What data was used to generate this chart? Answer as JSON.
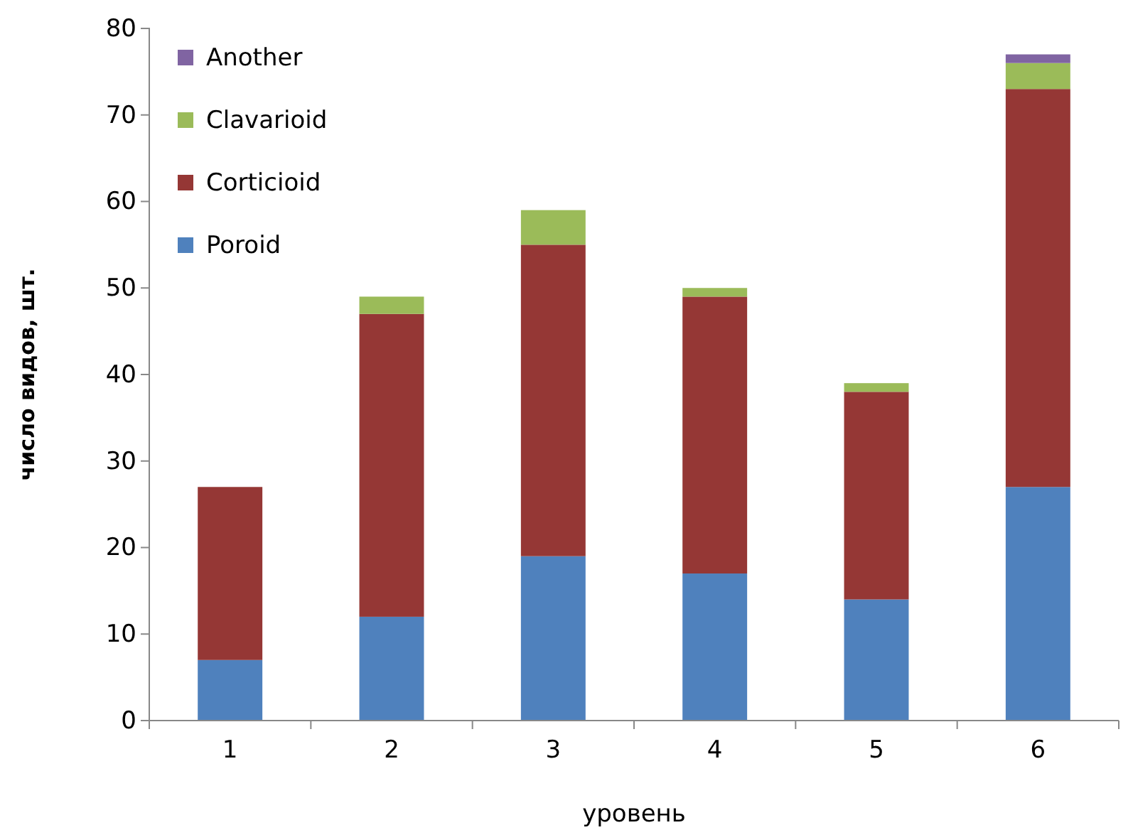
{
  "chart_data": {
    "type": "bar",
    "stacked": true,
    "xlabel": "уровень",
    "ylabel": "число видов, шт.",
    "categories": [
      "1",
      "2",
      "3",
      "4",
      "5",
      "6"
    ],
    "series": [
      {
        "name": "Poroid",
        "color": "#4f81bd",
        "values": [
          7,
          12,
          19,
          17,
          14,
          27
        ]
      },
      {
        "name": "Corticioid",
        "color": "#953735",
        "values": [
          20,
          35,
          36,
          32,
          24,
          46
        ]
      },
      {
        "name": "Clavarioid",
        "color": "#9bbb59",
        "values": [
          0,
          2,
          4,
          1,
          1,
          3
        ]
      },
      {
        "name": "Another",
        "color": "#8064a2",
        "values": [
          0,
          0,
          0,
          0,
          0,
          1
        ]
      }
    ],
    "ylim": [
      0,
      80
    ],
    "yticks": [
      0,
      10,
      20,
      30,
      40,
      50,
      60,
      70,
      80
    ],
    "grid": false,
    "legend": "top left"
  }
}
